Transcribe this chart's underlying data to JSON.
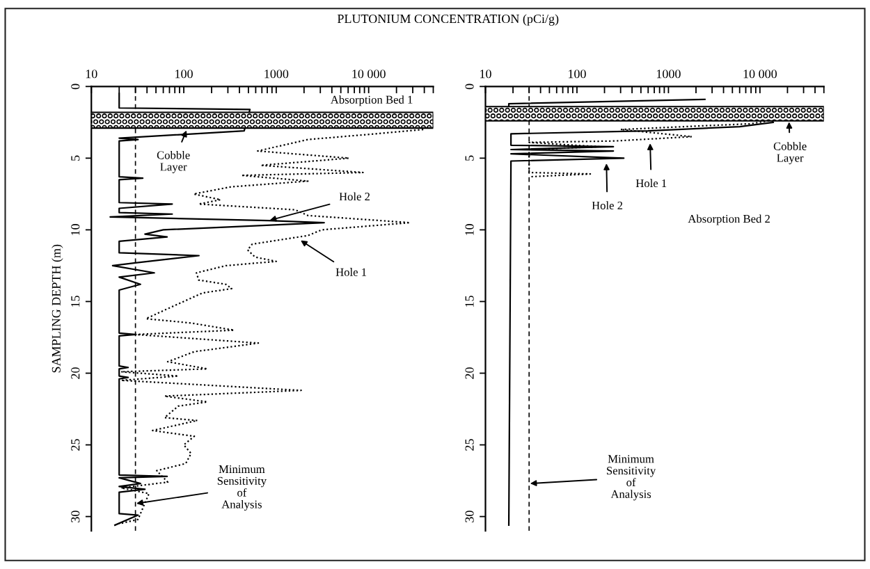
{
  "chart_data": [
    {
      "type": "line",
      "xlabel": "PLUTONIUM CONCENTRATION (pCi/g)",
      "ylabel": "SAMPLING DEPTH (m)",
      "log": "x",
      "xlim": [
        10,
        50000
      ],
      "ylim": [
        31,
        0
      ],
      "xticks": [
        10,
        {
          "value": 20,
          "label": null
        },
        {
          "value": 30,
          "label": null
        },
        {
          "value": 40,
          "label": null
        },
        {
          "value": 50,
          "label": null
        },
        {
          "value": 60,
          "label": null
        },
        {
          "value": 70,
          "label": null
        },
        {
          "value": 80,
          "label": null
        },
        {
          "value": 90,
          "label": null
        },
        100,
        {
          "value": 200,
          "label": null
        },
        {
          "value": 300,
          "label": null
        },
        {
          "value": 400,
          "label": null
        },
        {
          "value": 500,
          "label": null
        },
        {
          "value": 600,
          "label": null
        },
        {
          "value": 700,
          "label": null
        },
        {
          "value": 800,
          "label": null
        },
        {
          "value": 900,
          "label": null
        },
        1000,
        {
          "value": 2000,
          "label": null
        },
        {
          "value": 3000,
          "label": null
        },
        {
          "value": 4000,
          "label": null
        },
        {
          "value": 5000,
          "label": null
        },
        {
          "value": 6000,
          "label": null
        },
        {
          "value": 7000,
          "label": null
        },
        {
          "value": 8000,
          "label": null
        },
        {
          "value": 9000,
          "label": null
        },
        {
          "value": 10000,
          "label": "10 000"
        },
        {
          "value": 20000,
          "label": null
        },
        {
          "value": 30000,
          "label": null
        },
        {
          "value": 40000,
          "label": null
        },
        {
          "value": 50000,
          "label": null
        }
      ],
      "yticks": [
        0,
        5,
        10,
        15,
        20,
        25,
        30
      ],
      "grid": false,
      "legend": false,
      "marker": "none",
      "series": [
        {
          "color": "#000000",
          "line_style": "solid",
          "x": [
            20,
            20,
            520,
            450,
            20,
            32,
            20,
            20,
            36,
            20,
            20,
            75,
            20,
            20,
            75,
            16,
            830,
            3300,
            300,
            60,
            38,
            66,
            20,
            20,
            146,
            30,
            17,
            48,
            20,
            34,
            20,
            20,
            30,
            20,
            20,
            25,
            20,
            20,
            25,
            20,
            20,
            66,
            20,
            34,
            20,
            38,
            20,
            20,
            32,
            18
          ],
          "values": [
            0.5,
            1.5,
            1.6,
            3.1,
            3.6,
            3.7,
            3.8,
            6.3,
            6.4,
            6.5,
            8.1,
            8.2,
            8.5,
            8.8,
            8.9,
            9.1,
            9.35,
            9.5,
            9.8,
            10.0,
            10.3,
            10.5,
            10.8,
            11.6,
            11.8,
            12.3,
            12.5,
            13.0,
            13.3,
            13.8,
            14.2,
            17.2,
            17.3,
            17.4,
            19.5,
            19.6,
            19.7,
            20.2,
            20.3,
            20.4,
            27.1,
            27.2,
            27.3,
            27.7,
            27.9,
            28.1,
            28.3,
            29.8,
            29.9,
            30.6
          ]
        },
        {
          "color": "#000000",
          "line_style": "dotted",
          "x": [
            39000,
            12000,
            2200,
            630,
            6100,
            680,
            8700,
            420,
            2200,
            325,
            128,
            250,
            145,
            1600,
            2200,
            28000,
            3100,
            2200,
            550,
            490,
            590,
            1000,
            285,
            137,
            145,
            285,
            330,
            160,
            62,
            39,
            120,
            350,
            30,
            640,
            130,
            67,
            180,
            21,
            87,
            21,
            1860,
            62,
            180,
            87,
            62,
            140,
            46,
            130,
            100,
            120,
            105,
            51,
            67,
            21,
            42,
            32,
            20
          ],
          "values": [
            3.0,
            3.3,
            3.7,
            4.5,
            5.0,
            5.5,
            6.0,
            6.2,
            6.6,
            7.0,
            7.5,
            7.9,
            8.2,
            8.6,
            9.0,
            9.5,
            10.0,
            10.4,
            11.0,
            11.4,
            11.9,
            12.2,
            12.5,
            13.0,
            13.5,
            13.8,
            14.1,
            14.4,
            15.6,
            16.2,
            16.5,
            17.0,
            17.3,
            17.9,
            18.5,
            19.2,
            19.7,
            19.9,
            20.2,
            20.5,
            21.2,
            21.6,
            22.0,
            22.3,
            23.1,
            23.3,
            24.0,
            24.4,
            25.0,
            25.6,
            26.3,
            26.8,
            27.6,
            28.0,
            28.4,
            30.2,
            30.5
          ]
        }
      ],
      "ref_lines": [
        {
          "axis": "x",
          "value": 30,
          "color": "#000000",
          "line_style": "dashed"
        }
      ],
      "bands": [
        {
          "axis": "y",
          "from": 1.8,
          "to": 2.9,
          "color": "#000000"
        }
      ],
      "annotations": [
        "Absorption Bed 1",
        {
          "text": "Cobble\nLayer",
          "x": 108,
          "y": 3.0
        },
        {
          "text": "Hole 2",
          "x": 830,
          "y": 9.35
        },
        {
          "text": "Hole 1",
          "x": 1800,
          "y": 10.7
        },
        {
          "text": "Minimum\nSensitivity\nof\nAnalysis",
          "x": 30,
          "y": 29.1
        }
      ]
    },
    {
      "type": "line",
      "log": "x",
      "xlim": [
        10,
        50000
      ],
      "ylim": [
        31,
        0
      ],
      "xticks": [
        10,
        {
          "value": 20,
          "label": null
        },
        {
          "value": 30,
          "label": null
        },
        {
          "value": 40,
          "label": null
        },
        {
          "value": 50,
          "label": null
        },
        {
          "value": 60,
          "label": null
        },
        {
          "value": 70,
          "label": null
        },
        {
          "value": 80,
          "label": null
        },
        {
          "value": 90,
          "label": null
        },
        100,
        {
          "value": 200,
          "label": null
        },
        {
          "value": 300,
          "label": null
        },
        {
          "value": 400,
          "label": null
        },
        {
          "value": 500,
          "label": null
        },
        {
          "value": 600,
          "label": null
        },
        {
          "value": 700,
          "label": null
        },
        {
          "value": 800,
          "label": null
        },
        {
          "value": 900,
          "label": null
        },
        1000,
        {
          "value": 2000,
          "label": null
        },
        {
          "value": 3000,
          "label": null
        },
        {
          "value": 4000,
          "label": null
        },
        {
          "value": 5000,
          "label": null
        },
        {
          "value": 6000,
          "label": null
        },
        {
          "value": 7000,
          "label": null
        },
        {
          "value": 8000,
          "label": null
        },
        {
          "value": 9000,
          "label": null
        },
        {
          "value": 10000,
          "label": "10 000"
        },
        {
          "value": 20000,
          "label": null
        },
        {
          "value": 30000,
          "label": null
        },
        {
          "value": 40000,
          "label": null
        },
        {
          "value": 50000,
          "label": null
        }
      ],
      "yticks": [
        0,
        5,
        10,
        15,
        20,
        25,
        30
      ],
      "grid": false,
      "legend": false,
      "marker": "none",
      "series": [
        {
          "color": "#000000",
          "line_style": "solid",
          "x": [
            2500,
            18,
            18,
            12000,
            14000,
            6000,
            600,
            19,
            19,
            250,
            19,
            250,
            19,
            325,
            19,
            18
          ],
          "values": [
            0.9,
            1.2,
            1.5,
            2.0,
            2.5,
            2.8,
            3.1,
            3.3,
            4.1,
            4.2,
            4.4,
            4.5,
            4.7,
            5.0,
            5.2,
            30.6
          ]
        },
        {
          "color": "#000000",
          "line_style": "dotted",
          "x": [
            30,
            8000,
            15000,
            8000,
            1500,
            300,
            1800,
            260,
            30,
            175,
            30,
            30,
            140,
            30
          ],
          "values": [
            1.5,
            1.8,
            2.3,
            2.6,
            2.8,
            3.0,
            3.5,
            3.8,
            3.9,
            4.2,
            4.4,
            6.0,
            6.1,
            6.3
          ]
        }
      ],
      "ref_lines": [
        {
          "axis": "x",
          "value": 30,
          "color": "#000000",
          "line_style": "dashed"
        }
      ],
      "bands": [
        {
          "axis": "y",
          "from": 1.4,
          "to": 2.4,
          "color": "#000000"
        }
      ],
      "annotations": [
        "Absorption Bed 2",
        {
          "text": "Cobble\nLayer",
          "x": 20800,
          "y": 2.4
        },
        {
          "text": "Hole 1",
          "x": 630,
          "y": 3.9
        },
        {
          "text": "Hole 2",
          "x": 210,
          "y": 5.3
        },
        {
          "text": "Minimum\nSensitivity\nof\nAnalysis",
          "x": 30,
          "y": 27.7
        }
      ]
    }
  ]
}
